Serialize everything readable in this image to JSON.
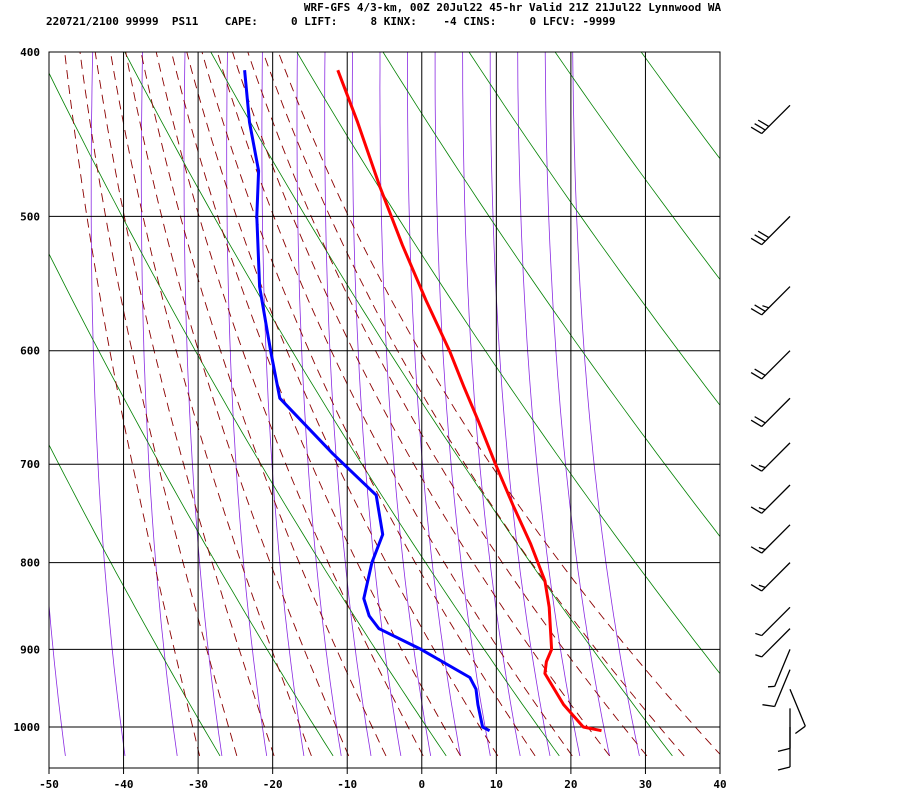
{
  "header": {
    "title": "WRF-GFS 4/3-km, 00Z 20Jul22 45-hr Valid 21Z 21Jul22 Lynnwood WA",
    "indices": "220721/2100 99999  PS11    CAPE:     0 LIFT:     8 KINX:    -4 CINS:     0 LFCV: -9999"
  },
  "chart_data": {
    "type": "line",
    "title": "WRF-GFS 4/3-km, 00Z 20Jul22 45-hr Valid 21Z 21Jul22 Lynnwood WA",
    "xlabel": "",
    "ylabel": "",
    "x_ticks": [
      -50,
      -40,
      -30,
      -20,
      -10,
      0,
      10,
      20,
      30,
      40
    ],
    "p_ticks": [
      400,
      500,
      600,
      700,
      800,
      900,
      1000
    ],
    "xlim": [
      -50,
      40
    ],
    "plim": [
      1040,
      400
    ],
    "grid": true,
    "series": [
      {
        "name": "",
        "color": "#ff0000",
        "points": [
          {
            "p": 1005,
            "t": 23.5
          },
          {
            "p": 1000,
            "t": 21.0
          },
          {
            "p": 970,
            "t": 18.0
          },
          {
            "p": 930,
            "t": 15.0
          },
          {
            "p": 915,
            "t": 15.0
          },
          {
            "p": 900,
            "t": 15.5
          },
          {
            "p": 850,
            "t": 14.5
          },
          {
            "p": 820,
            "t": 13.5
          },
          {
            "p": 780,
            "t": 11.0
          },
          {
            "p": 740,
            "t": 8.0
          },
          {
            "p": 700,
            "t": 5.0
          },
          {
            "p": 660,
            "t": 2.0
          },
          {
            "p": 630,
            "t": -0.5
          },
          {
            "p": 600,
            "t": -3.0
          },
          {
            "p": 560,
            "t": -7.0
          },
          {
            "p": 520,
            "t": -11.0
          },
          {
            "p": 480,
            "t": -15.0
          },
          {
            "p": 440,
            "t": -19.0
          },
          {
            "p": 410,
            "t": -22.5
          }
        ]
      },
      {
        "name": "",
        "color": "#0000ff",
        "points": [
          {
            "p": 1005,
            "t": 8.5
          },
          {
            "p": 1000,
            "t": 7.5
          },
          {
            "p": 970,
            "t": 6.5
          },
          {
            "p": 950,
            "t": 6.0
          },
          {
            "p": 935,
            "t": 5.0
          },
          {
            "p": 900,
            "t": -2.0
          },
          {
            "p": 875,
            "t": -8.0
          },
          {
            "p": 860,
            "t": -9.5
          },
          {
            "p": 840,
            "t": -10.5
          },
          {
            "p": 800,
            "t": -10.0
          },
          {
            "p": 770,
            "t": -9.0
          },
          {
            "p": 730,
            "t": -10.5
          },
          {
            "p": 690,
            "t": -17.0
          },
          {
            "p": 640,
            "t": -25.0
          },
          {
            "p": 600,
            "t": -27.0
          },
          {
            "p": 550,
            "t": -29.5
          },
          {
            "p": 500,
            "t": -31.0
          },
          {
            "p": 470,
            "t": -31.5
          },
          {
            "p": 440,
            "t": -33.5
          },
          {
            "p": 410,
            "t": -35.0
          }
        ]
      }
    ],
    "reference_lines": {
      "isotherm_color": "#000000",
      "dry_adiabat_color": "#008000",
      "moist_adiabat_color": "#8b0000",
      "mixing_ratio_color": "#8a2be2"
    },
    "wind_barbs": [
      {
        "p": 1000,
        "dir": "S",
        "speed_kt": 10
      },
      {
        "p": 975,
        "dir": "S",
        "speed_kt": 10
      },
      {
        "p": 950,
        "dir": "SSE",
        "speed_kt": 10
      },
      {
        "p": 925,
        "dir": "SSW",
        "speed_kt": 10
      },
      {
        "p": 900,
        "dir": "SSW",
        "speed_kt": 5
      },
      {
        "p": 875,
        "dir": "SW",
        "speed_kt": 5
      },
      {
        "p": 850,
        "dir": "SW",
        "speed_kt": 5
      },
      {
        "p": 800,
        "dir": "SW",
        "speed_kt": 15
      },
      {
        "p": 760,
        "dir": "SW",
        "speed_kt": 15
      },
      {
        "p": 720,
        "dir": "SW",
        "speed_kt": 15
      },
      {
        "p": 680,
        "dir": "SW",
        "speed_kt": 15
      },
      {
        "p": 640,
        "dir": "SW",
        "speed_kt": 20
      },
      {
        "p": 600,
        "dir": "SW",
        "speed_kt": 20
      },
      {
        "p": 550,
        "dir": "SW",
        "speed_kt": 25
      },
      {
        "p": 500,
        "dir": "SW",
        "speed_kt": 30
      },
      {
        "p": 430,
        "dir": "SW",
        "speed_kt": 30
      }
    ]
  }
}
